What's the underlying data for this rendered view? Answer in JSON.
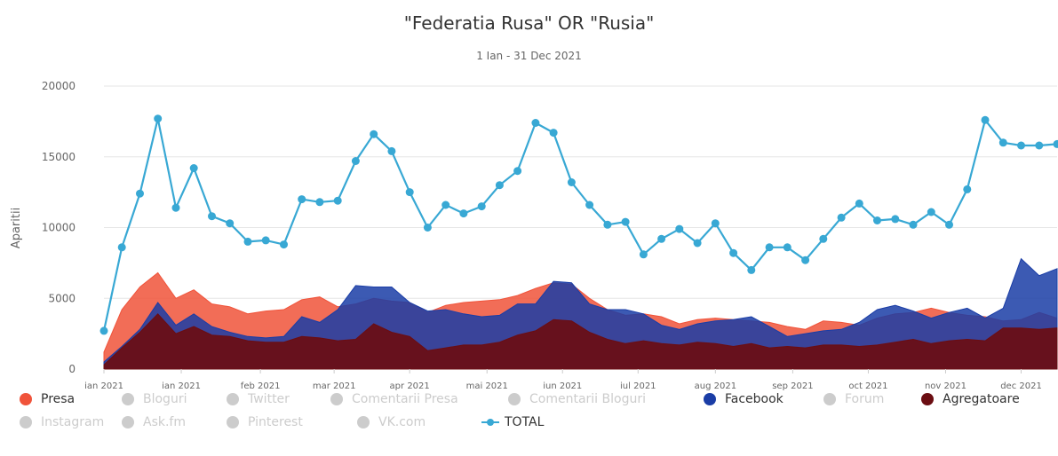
{
  "title": "\"Federatia Rusa\" OR \"Rusia\"",
  "subtitle": "1 Ian - 31 Dec 2021",
  "colors": {
    "presa": "#f0533a",
    "facebook": "#1a3da6",
    "agregatoare": "#6b0d12",
    "total": "#38a8d4",
    "inactive": "#cccccc"
  },
  "legend": [
    {
      "label": "Presa",
      "color": "#f0533a",
      "active": true,
      "symbol": "dot"
    },
    {
      "label": "Bloguri",
      "active": false,
      "symbol": "dot"
    },
    {
      "label": "Twitter",
      "active": false,
      "symbol": "dot"
    },
    {
      "label": "Comentarii Presa",
      "active": false,
      "symbol": "dot"
    },
    {
      "label": "Comentarii Bloguri",
      "active": false,
      "symbol": "dot"
    },
    {
      "label": "Facebook",
      "color": "#1a3da6",
      "active": true,
      "symbol": "dot"
    },
    {
      "label": "Forum",
      "active": false,
      "symbol": "dot"
    },
    {
      "label": "Agregatoare",
      "color": "#6b0d12",
      "active": true,
      "symbol": "dot"
    },
    {
      "label": "Instagram",
      "active": false,
      "symbol": "dot"
    },
    {
      "label": "Ask.fm",
      "active": false,
      "symbol": "dot"
    },
    {
      "label": "Pinterest",
      "active": false,
      "symbol": "dot"
    },
    {
      "label": "VK.com",
      "active": false,
      "symbol": "dot"
    },
    {
      "label": "TOTAL",
      "color": "#38a8d4",
      "active": true,
      "symbol": "line"
    }
  ],
  "chart_data": {
    "type": "area",
    "title": "\"Federatia Rusa\" OR \"Rusia\"",
    "subtitle": "1 Ian - 31 Dec 2021",
    "xlabel": "",
    "ylabel": "Aparitii",
    "ylim": [
      0,
      20000
    ],
    "yticks": [
      0,
      5000,
      10000,
      15000,
      20000
    ],
    "xtick_labels": [
      "ian 2021",
      "ian 2021",
      "feb 2021",
      "mar 2021",
      "apr 2021",
      "mai 2021",
      "iun 2021",
      "iul 2021",
      "aug 2021",
      "sep 2021",
      "oct 2021",
      "nov 2021",
      "dec 2021"
    ],
    "xtick_index": [
      0,
      4.3,
      8.7,
      12.8,
      17.0,
      21.3,
      25.5,
      29.7,
      34.0,
      38.3,
      42.5,
      46.8,
      51.0
    ],
    "grid": true,
    "legend_position": "bottom",
    "points_per_series": 54,
    "series": [
      {
        "name": "Presa",
        "color": "#f0533a",
        "values": [
          1200,
          4200,
          5800,
          6800,
          5000,
          5600,
          4600,
          4400,
          3900,
          4100,
          4200,
          4900,
          5100,
          4400,
          4600,
          5000,
          4800,
          4700,
          4000,
          4500,
          4700,
          4800,
          4900,
          5200,
          5700,
          6100,
          6000,
          5000,
          4200,
          3800,
          3900,
          3700,
          3200,
          3500,
          3600,
          3500,
          3400,
          3300,
          3000,
          2800,
          3400,
          3300,
          3100,
          3600,
          3900,
          4000,
          4300,
          4000,
          3800,
          3700,
          3400,
          3500,
          4000,
          3600
        ]
      },
      {
        "name": "Facebook",
        "color": "#1a3da6",
        "values": [
          500,
          1600,
          2800,
          4700,
          3100,
          3900,
          3000,
          2600,
          2300,
          2200,
          2300,
          3700,
          3300,
          4200,
          5900,
          5800,
          5800,
          4700,
          4100,
          4200,
          3900,
          3700,
          3800,
          4600,
          4600,
          6200,
          6100,
          4600,
          4200,
          4200,
          3900,
          3100,
          2800,
          3200,
          3400,
          3500,
          3700,
          3000,
          2300,
          2500,
          2700,
          2800,
          3300,
          4200,
          4500,
          4100,
          3600,
          4000,
          4300,
          3600,
          4300,
          7800,
          6600,
          7100
        ]
      },
      {
        "name": "Agregatoare",
        "color": "#6b0d12",
        "values": [
          300,
          1500,
          2600,
          3900,
          2500,
          3000,
          2400,
          2300,
          2000,
          1900,
          1900,
          2300,
          2200,
          2000,
          2100,
          3200,
          2600,
          2300,
          1300,
          1500,
          1700,
          1700,
          1900,
          2400,
          2700,
          3500,
          3400,
          2600,
          2100,
          1800,
          2000,
          1800,
          1700,
          1900,
          1800,
          1600,
          1800,
          1500,
          1600,
          1500,
          1700,
          1700,
          1600,
          1700,
          1900,
          2100,
          1800,
          2000,
          2100,
          2000,
          2900,
          2900,
          2800,
          2900
        ]
      },
      {
        "name": "TOTAL",
        "color": "#38a8d4",
        "values": [
          2700,
          8600,
          12400,
          17700,
          11400,
          14200,
          10800,
          10300,
          9000,
          9100,
          8800,
          12000,
          11800,
          11900,
          14700,
          16600,
          15400,
          12500,
          10000,
          11600,
          11000,
          11500,
          13000,
          14000,
          17400,
          16700,
          13200,
          11600,
          10200,
          10400,
          8100,
          9200,
          9900,
          8900,
          10300,
          8200,
          7000,
          8600,
          8600,
          7700,
          9200,
          10700,
          11700,
          10500,
          10600,
          10200,
          11100,
          10200,
          12700,
          17600,
          16000,
          15800,
          15800,
          15900
        ]
      }
    ]
  }
}
